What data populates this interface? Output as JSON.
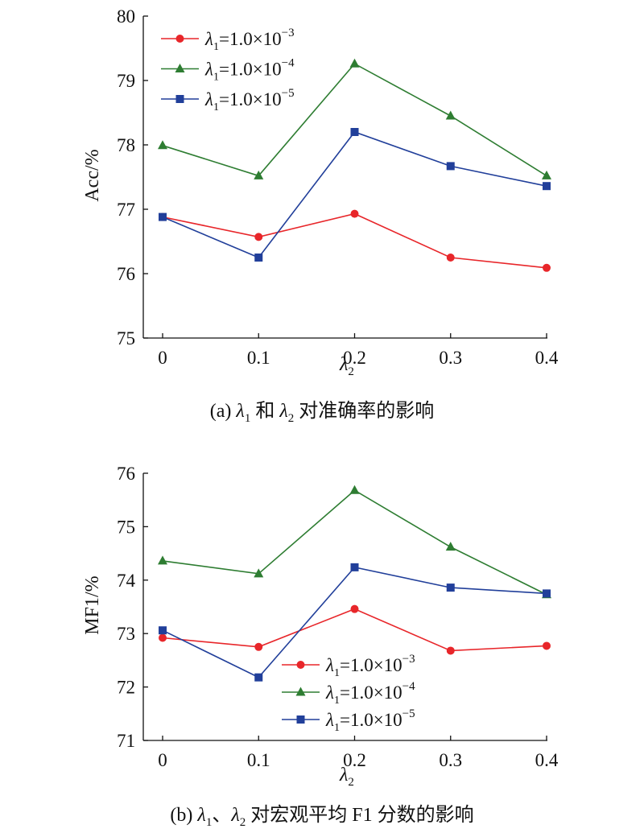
{
  "colors": {
    "red": "#e8262a",
    "green": "#2e7d32",
    "blue": "#213f9a",
    "axis": "#111111"
  },
  "legend": [
    {
      "sym": "λ",
      "sub": "1",
      "text": "=1.0×10",
      "exp": "−3",
      "series": "red"
    },
    {
      "sym": "λ",
      "sub": "1",
      "text": "=1.0×10",
      "exp": "−4",
      "series": "green"
    },
    {
      "sym": "λ",
      "sub": "1",
      "text": "=1.0×10",
      "exp": "−5",
      "series": "blue"
    }
  ],
  "chart_data": [
    {
      "type": "line",
      "ylabel": "Acc/%",
      "xlabel": {
        "sym": "λ",
        "sub": "2"
      },
      "caption": {
        "p1": "(a) ",
        "s1": "λ",
        "b1": "1",
        "p2": " 和 ",
        "s2": "λ",
        "b2": "2",
        "p3": " 对准确率的影响"
      },
      "x": [
        0,
        0.1,
        0.2,
        0.3,
        0.4
      ],
      "xticks": [
        "0",
        "0.1",
        "0.2",
        "0.3",
        "0.4"
      ],
      "yticks": [
        "75",
        "76",
        "77",
        "78",
        "79",
        "80"
      ],
      "ylim": [
        75,
        80
      ],
      "legend_position": "top-left",
      "series": [
        {
          "color": "red",
          "marker": "circle",
          "values": [
            76.88,
            76.57,
            76.93,
            76.25,
            76.09
          ]
        },
        {
          "color": "green",
          "marker": "triangle",
          "values": [
            77.99,
            77.52,
            79.26,
            78.45,
            77.52
          ]
        },
        {
          "color": "blue",
          "marker": "square",
          "values": [
            76.88,
            76.25,
            78.2,
            77.67,
            77.36
          ]
        }
      ]
    },
    {
      "type": "line",
      "ylabel": "MF1/%",
      "xlabel": {
        "sym": "λ",
        "sub": "2"
      },
      "caption": {
        "p1": "(b) ",
        "s1": "λ",
        "b1": "1",
        "p2": "、",
        "s2": "λ",
        "b2": "2",
        "p3": " 对宏观平均 F1 分数的影响"
      },
      "x": [
        0,
        0.1,
        0.2,
        0.3,
        0.4
      ],
      "xticks": [
        "0",
        "0.1",
        "0.2",
        "0.3",
        "0.4"
      ],
      "yticks": [
        "71",
        "72",
        "73",
        "74",
        "75",
        "76"
      ],
      "ylim": [
        71,
        76
      ],
      "legend_position": "bottom-center",
      "series": [
        {
          "color": "red",
          "marker": "circle",
          "values": [
            72.92,
            72.75,
            73.46,
            72.68,
            72.77
          ]
        },
        {
          "color": "green",
          "marker": "triangle",
          "values": [
            74.36,
            74.12,
            75.68,
            74.62,
            73.73
          ]
        },
        {
          "color": "blue",
          "marker": "square",
          "values": [
            73.06,
            72.18,
            74.24,
            73.86,
            73.75
          ]
        }
      ]
    }
  ]
}
